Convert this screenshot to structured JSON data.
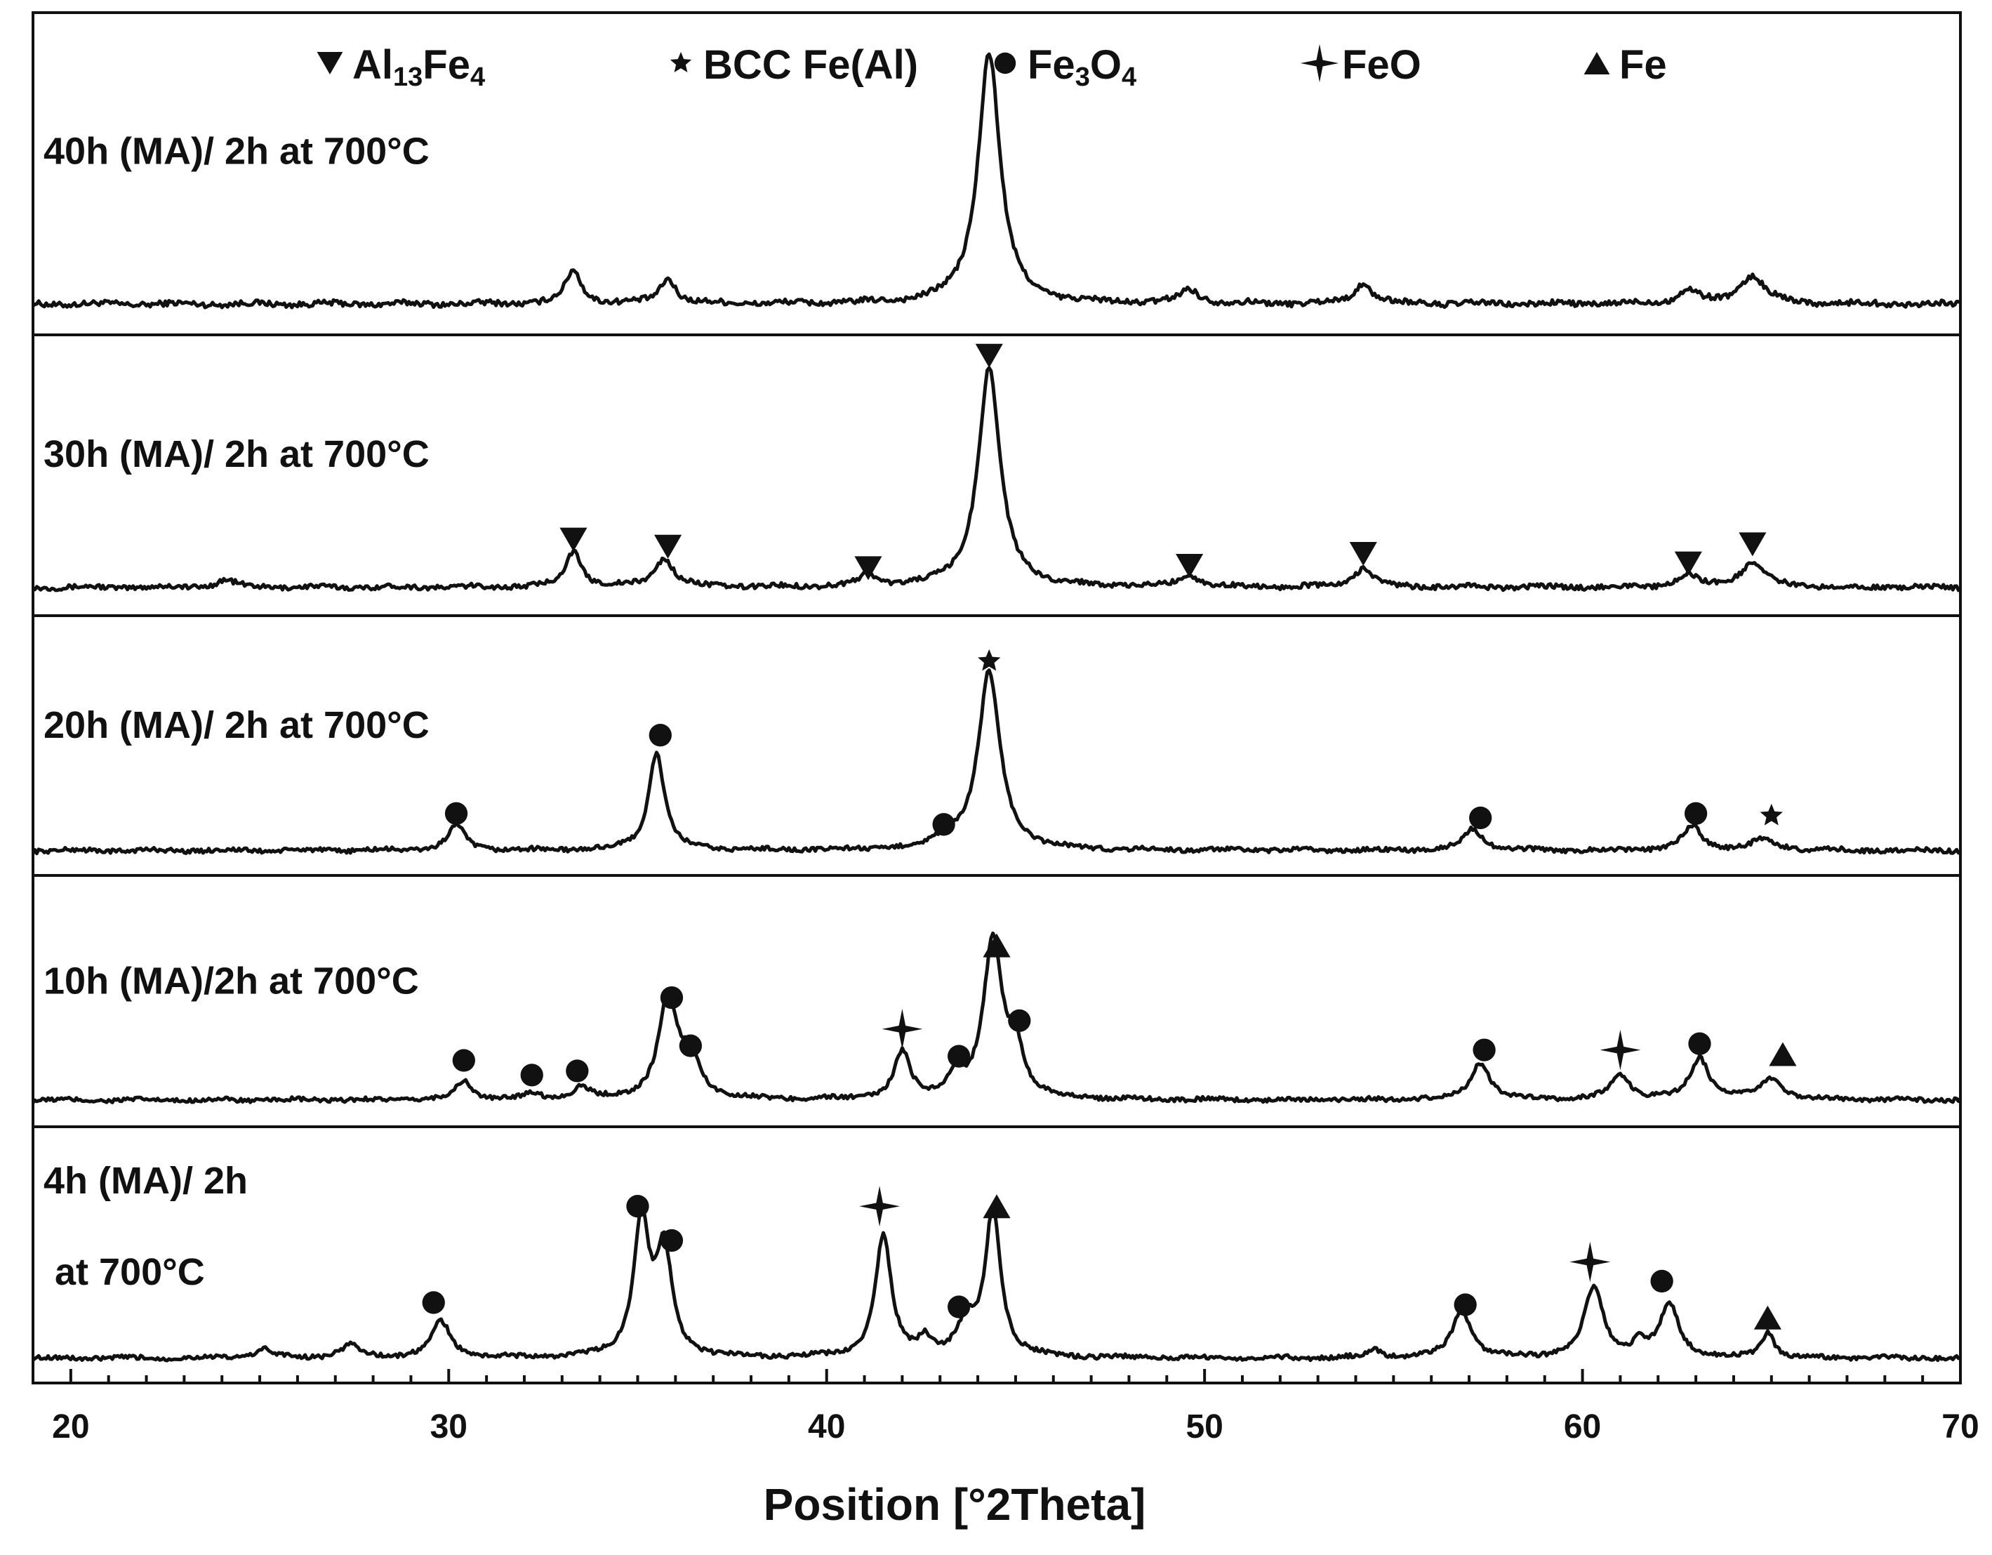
{
  "chart_data": {
    "type": "line",
    "xlabel": "Position [°2Theta]",
    "xlim": [
      19,
      70
    ],
    "xticks": [
      "20",
      "30",
      "40",
      "50",
      "60",
      "70"
    ],
    "legend": [
      {
        "marker": "triangle-down",
        "label_main": "Al",
        "label_sub1": "13",
        "label_mid": "Fe",
        "label_sub2": "4"
      },
      {
        "marker": "star",
        "label_main": "BCC Fe(Al)",
        "label_sub1": "",
        "label_mid": "",
        "label_sub2": ""
      },
      {
        "marker": "circle",
        "label_main": "Fe",
        "label_sub1": "3",
        "label_mid": "O",
        "label_sub2": "4"
      },
      {
        "marker": "sparkle",
        "label_main": "FeO",
        "label_sub1": "",
        "label_mid": "",
        "label_sub2": ""
      },
      {
        "marker": "triangle-up",
        "label_main": "Fe",
        "label_sub1": "",
        "label_mid": "",
        "label_sub2": ""
      }
    ],
    "panels": [
      {
        "label_lines": [
          "40h (MA)/ 2h at 700°C"
        ],
        "baseline": 0.06,
        "peaks": [
          [
            33.3,
            0.12,
            0.25
          ],
          [
            35.8,
            0.09,
            0.25
          ],
          [
            44.3,
            0.9,
            0.35
          ],
          [
            49.6,
            0.05,
            0.3
          ],
          [
            54.2,
            0.07,
            0.3
          ],
          [
            62.8,
            0.05,
            0.3
          ],
          [
            64.5,
            0.1,
            0.4
          ]
        ],
        "markers": []
      },
      {
        "label_lines": [
          "30h (MA)/ 2h at 700°C"
        ],
        "baseline": 0.06,
        "peaks": [
          [
            24.1,
            0.03,
            0.3
          ],
          [
            33.3,
            0.15,
            0.25
          ],
          [
            35.7,
            0.12,
            0.3
          ],
          [
            41.1,
            0.05,
            0.25
          ],
          [
            44.3,
            0.92,
            0.35
          ],
          [
            49.6,
            0.05,
            0.3
          ],
          [
            54.2,
            0.08,
            0.3
          ],
          [
            62.8,
            0.05,
            0.3
          ],
          [
            64.5,
            0.1,
            0.4
          ]
        ],
        "markers": [
          {
            "type": "triangle-down",
            "x": 33.3,
            "h": 0.26
          },
          {
            "type": "triangle-down",
            "x": 35.8,
            "h": 0.23
          },
          {
            "type": "triangle-down",
            "x": 41.1,
            "h": 0.14
          },
          {
            "type": "triangle-down",
            "x": 44.3,
            "h": 1.03
          },
          {
            "type": "triangle-down",
            "x": 49.6,
            "h": 0.15
          },
          {
            "type": "triangle-down",
            "x": 54.2,
            "h": 0.2
          },
          {
            "type": "triangle-down",
            "x": 62.8,
            "h": 0.16
          },
          {
            "type": "triangle-down",
            "x": 64.5,
            "h": 0.24
          }
        ]
      },
      {
        "label_lines": [
          "20h (MA)/ 2h at 700°C"
        ],
        "baseline": 0.05,
        "peaks": [
          [
            30.2,
            0.12,
            0.25
          ],
          [
            35.5,
            0.45,
            0.25
          ],
          [
            43.2,
            0.06,
            0.25
          ],
          [
            44.3,
            0.82,
            0.35
          ],
          [
            57.1,
            0.1,
            0.3
          ],
          [
            62.9,
            0.11,
            0.3
          ],
          [
            64.8,
            0.05,
            0.4
          ]
        ],
        "markers": [
          {
            "type": "circle",
            "x": 30.2,
            "h": 0.22
          },
          {
            "type": "circle",
            "x": 35.6,
            "h": 0.58
          },
          {
            "type": "circle",
            "x": 43.1,
            "h": 0.17
          },
          {
            "type": "star",
            "x": 44.3,
            "h": 0.92
          },
          {
            "type": "circle",
            "x": 57.3,
            "h": 0.2
          },
          {
            "type": "circle",
            "x": 63.0,
            "h": 0.22
          },
          {
            "type": "star",
            "x": 65.0,
            "h": 0.21
          }
        ]
      },
      {
        "label_lines": [
          "10h (MA)/2h at 700°C"
        ],
        "baseline": 0.06,
        "peaks": [
          [
            30.4,
            0.09,
            0.25
          ],
          [
            32.2,
            0.03,
            0.25
          ],
          [
            33.5,
            0.06,
            0.25
          ],
          [
            35.8,
            0.48,
            0.3
          ],
          [
            36.4,
            0.18,
            0.3
          ],
          [
            42.0,
            0.22,
            0.25
          ],
          [
            43.4,
            0.1,
            0.25
          ],
          [
            44.4,
            0.75,
            0.3
          ],
          [
            45.0,
            0.22,
            0.25
          ],
          [
            57.3,
            0.18,
            0.3
          ],
          [
            61.0,
            0.12,
            0.3
          ],
          [
            63.1,
            0.2,
            0.3
          ],
          [
            65.0,
            0.1,
            0.35
          ]
        ],
        "markers": [
          {
            "type": "circle",
            "x": 30.4,
            "h": 0.25
          },
          {
            "type": "circle",
            "x": 32.2,
            "h": 0.18
          },
          {
            "type": "circle",
            "x": 33.4,
            "h": 0.2
          },
          {
            "type": "circle",
            "x": 35.9,
            "h": 0.55
          },
          {
            "type": "circle",
            "x": 36.4,
            "h": 0.32
          },
          {
            "type": "sparkle",
            "x": 42.0,
            "h": 0.4
          },
          {
            "type": "circle",
            "x": 43.5,
            "h": 0.27
          },
          {
            "type": "triangle-up",
            "x": 44.5,
            "h": 0.8
          },
          {
            "type": "circle",
            "x": 45.1,
            "h": 0.44
          },
          {
            "type": "circle",
            "x": 57.4,
            "h": 0.3
          },
          {
            "type": "sparkle",
            "x": 61.0,
            "h": 0.3
          },
          {
            "type": "circle",
            "x": 63.1,
            "h": 0.33
          },
          {
            "type": "triangle-up",
            "x": 65.3,
            "h": 0.28
          }
        ]
      },
      {
        "label_lines": [
          "4h (MA)/ 2h",
          "at 700°C"
        ],
        "baseline": 0.05,
        "peaks": [
          [
            25.1,
            0.04,
            0.3
          ],
          [
            27.4,
            0.06,
            0.3
          ],
          [
            29.8,
            0.17,
            0.3
          ],
          [
            35.1,
            0.64,
            0.25
          ],
          [
            35.7,
            0.48,
            0.25
          ],
          [
            41.5,
            0.57,
            0.25
          ],
          [
            42.6,
            0.08,
            0.2
          ],
          [
            43.7,
            0.14,
            0.3
          ],
          [
            44.4,
            0.68,
            0.25
          ],
          [
            54.5,
            0.04,
            0.2
          ],
          [
            56.8,
            0.22,
            0.3
          ],
          [
            60.3,
            0.33,
            0.3
          ],
          [
            61.5,
            0.06,
            0.2
          ],
          [
            62.3,
            0.25,
            0.3
          ],
          [
            64.9,
            0.12,
            0.2
          ]
        ],
        "markers": [
          {
            "type": "circle",
            "x": 29.6,
            "h": 0.31
          },
          {
            "type": "circle",
            "x": 35.0,
            "h": 0.76
          },
          {
            "type": "circle",
            "x": 35.9,
            "h": 0.6
          },
          {
            "type": "sparkle",
            "x": 41.4,
            "h": 0.76
          },
          {
            "type": "circle",
            "x": 43.5,
            "h": 0.29
          },
          {
            "type": "triangle-up",
            "x": 44.5,
            "h": 0.76
          },
          {
            "type": "circle",
            "x": 56.9,
            "h": 0.3
          },
          {
            "type": "sparkle",
            "x": 60.2,
            "h": 0.5
          },
          {
            "type": "circle",
            "x": 62.1,
            "h": 0.41
          },
          {
            "type": "triangle-up",
            "x": 64.9,
            "h": 0.24
          }
        ]
      }
    ]
  }
}
